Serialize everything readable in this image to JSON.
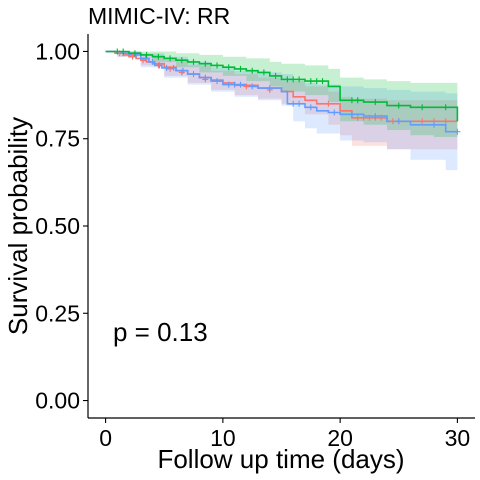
{
  "chart_data": {
    "type": "line",
    "title": "MIMIC-IV: RR",
    "xlabel": "Follow up time (days)",
    "ylabel": "Survival probability",
    "xlim": [
      -1.5,
      31.5
    ],
    "ylim": [
      -0.05,
      1.05
    ],
    "x_ticks": [
      0,
      10,
      20,
      30
    ],
    "x_tick_labels": [
      "0",
      "10",
      "20",
      "30"
    ],
    "y_ticks": [
      0,
      0.25,
      0.5,
      0.75,
      1.0
    ],
    "y_tick_labels": [
      "0.00",
      "0.25",
      "0.50",
      "0.75",
      "1.00"
    ],
    "grid": false,
    "legend": "none",
    "annotation": "p = 0.13",
    "series": [
      {
        "color": "#F8766D",
        "ci_color": "#F8766D",
        "steps": [
          [
            0,
            1.0
          ],
          [
            0.8,
            0.995
          ],
          [
            1.5,
            0.99
          ],
          [
            2,
            0.985
          ],
          [
            2.6,
            0.98
          ],
          [
            3,
            0.975
          ],
          [
            3.5,
            0.97
          ],
          [
            4,
            0.965
          ],
          [
            5,
            0.955
          ],
          [
            6,
            0.945
          ],
          [
            7,
            0.935
          ],
          [
            8,
            0.925
          ],
          [
            9,
            0.918
          ],
          [
            10,
            0.91
          ],
          [
            11,
            0.903
          ],
          [
            13,
            0.895
          ],
          [
            15,
            0.885
          ],
          [
            16,
            0.87
          ],
          [
            17,
            0.86
          ],
          [
            18,
            0.85
          ],
          [
            20,
            0.83
          ],
          [
            21,
            0.81
          ],
          [
            24,
            0.8
          ],
          [
            26,
            0.8
          ],
          [
            30,
            0.8
          ]
        ],
        "ci_lower": [
          [
            0,
            1.0
          ],
          [
            1,
            0.985
          ],
          [
            3,
            0.96
          ],
          [
            5,
            0.93
          ],
          [
            7,
            0.91
          ],
          [
            9,
            0.89
          ],
          [
            11,
            0.875
          ],
          [
            13,
            0.865
          ],
          [
            15,
            0.85
          ],
          [
            17,
            0.82
          ],
          [
            19,
            0.79
          ],
          [
            20,
            0.76
          ],
          [
            21,
            0.73
          ],
          [
            24,
            0.72
          ],
          [
            30,
            0.72
          ]
        ],
        "ci_upper": [
          [
            0,
            1.0
          ],
          [
            1,
            1.0
          ],
          [
            3,
            0.99
          ],
          [
            5,
            0.975
          ],
          [
            7,
            0.96
          ],
          [
            9,
            0.945
          ],
          [
            11,
            0.935
          ],
          [
            13,
            0.925
          ],
          [
            15,
            0.915
          ],
          [
            17,
            0.9
          ],
          [
            19,
            0.885
          ],
          [
            20,
            0.87
          ],
          [
            21,
            0.865
          ],
          [
            24,
            0.86
          ],
          [
            30,
            0.86
          ]
        ],
        "censored": [
          [
            1.2,
            0.995
          ],
          [
            2.3,
            0.985
          ],
          [
            3.2,
            0.975
          ],
          [
            4.5,
            0.96
          ],
          [
            5.5,
            0.95
          ],
          [
            6.5,
            0.94
          ],
          [
            8.5,
            0.92
          ],
          [
            12,
            0.9
          ],
          [
            14,
            0.89
          ],
          [
            19,
            0.85
          ],
          [
            21.5,
            0.81
          ],
          [
            22,
            0.81
          ],
          [
            22.5,
            0.81
          ],
          [
            23,
            0.81
          ],
          [
            23.5,
            0.81
          ],
          [
            24.5,
            0.8
          ],
          [
            25,
            0.8
          ],
          [
            27,
            0.8
          ],
          [
            28,
            0.8
          ],
          [
            29,
            0.8
          ]
        ]
      },
      {
        "color": "#619CFF",
        "ci_color": "#619CFF",
        "steps": [
          [
            0,
            1.0
          ],
          [
            1,
            0.995
          ],
          [
            2,
            0.99
          ],
          [
            3,
            0.98
          ],
          [
            3.7,
            0.97
          ],
          [
            4.2,
            0.96
          ],
          [
            4.8,
            0.953
          ],
          [
            6,
            0.945
          ],
          [
            7,
            0.935
          ],
          [
            8,
            0.925
          ],
          [
            9,
            0.915
          ],
          [
            10,
            0.905
          ],
          [
            12,
            0.9
          ],
          [
            13,
            0.895
          ],
          [
            15,
            0.885
          ],
          [
            15.5,
            0.85
          ],
          [
            17,
            0.84
          ],
          [
            18,
            0.83
          ],
          [
            19,
            0.825
          ],
          [
            20,
            0.82
          ],
          [
            22,
            0.815
          ],
          [
            24,
            0.8
          ],
          [
            26,
            0.79
          ],
          [
            29,
            0.77
          ],
          [
            30,
            0.77
          ]
        ],
        "ci_lower": [
          [
            0,
            1.0
          ],
          [
            1,
            0.985
          ],
          [
            3,
            0.955
          ],
          [
            5,
            0.925
          ],
          [
            7,
            0.905
          ],
          [
            9,
            0.885
          ],
          [
            11,
            0.87
          ],
          [
            13,
            0.86
          ],
          [
            15,
            0.845
          ],
          [
            16,
            0.8
          ],
          [
            17,
            0.78
          ],
          [
            18,
            0.765
          ],
          [
            20,
            0.745
          ],
          [
            22,
            0.74
          ],
          [
            24,
            0.72
          ],
          [
            26,
            0.69
          ],
          [
            29,
            0.66
          ],
          [
            30,
            0.66
          ]
        ],
        "ci_upper": [
          [
            0,
            1.0
          ],
          [
            1,
            1.0
          ],
          [
            3,
            0.995
          ],
          [
            5,
            0.985
          ],
          [
            7,
            0.97
          ],
          [
            9,
            0.955
          ],
          [
            11,
            0.945
          ],
          [
            13,
            0.94
          ],
          [
            15,
            0.935
          ],
          [
            16,
            0.915
          ],
          [
            17,
            0.91
          ],
          [
            18,
            0.905
          ],
          [
            20,
            0.9
          ],
          [
            22,
            0.895
          ],
          [
            24,
            0.89
          ],
          [
            26,
            0.885
          ],
          [
            29,
            0.88
          ],
          [
            30,
            0.88
          ]
        ],
        "censored": [
          [
            1.5,
            0.995
          ],
          [
            2.6,
            0.99
          ],
          [
            3.4,
            0.98
          ],
          [
            4,
            0.97
          ],
          [
            4.6,
            0.96
          ],
          [
            5.2,
            0.953
          ],
          [
            5.8,
            0.953
          ],
          [
            6.6,
            0.945
          ],
          [
            7.5,
            0.935
          ],
          [
            8.5,
            0.925
          ],
          [
            9.5,
            0.915
          ],
          [
            10.5,
            0.905
          ],
          [
            11,
            0.905
          ],
          [
            11.5,
            0.905
          ],
          [
            12.5,
            0.9
          ],
          [
            14,
            0.895
          ],
          [
            16,
            0.85
          ],
          [
            16.5,
            0.85
          ],
          [
            17.5,
            0.84
          ],
          [
            19.5,
            0.825
          ],
          [
            21,
            0.82
          ],
          [
            23,
            0.815
          ],
          [
            25,
            0.8
          ],
          [
            28,
            0.79
          ],
          [
            30,
            0.77
          ]
        ]
      },
      {
        "color": "#00BA38",
        "ci_color": "#00BA38",
        "steps": [
          [
            0,
            1.0
          ],
          [
            2,
            0.995
          ],
          [
            3,
            0.99
          ],
          [
            4,
            0.985
          ],
          [
            5,
            0.98
          ],
          [
            6,
            0.975
          ],
          [
            7,
            0.97
          ],
          [
            8,
            0.965
          ],
          [
            9,
            0.96
          ],
          [
            10,
            0.955
          ],
          [
            11,
            0.95
          ],
          [
            12,
            0.945
          ],
          [
            13,
            0.94
          ],
          [
            14,
            0.93
          ],
          [
            15,
            0.92
          ],
          [
            17,
            0.915
          ],
          [
            19,
            0.9
          ],
          [
            20,
            0.86
          ],
          [
            22,
            0.855
          ],
          [
            24,
            0.845
          ],
          [
            26,
            0.84
          ],
          [
            28,
            0.84
          ],
          [
            30,
            0.8
          ]
        ],
        "ci_lower": [
          [
            0,
            1.0
          ],
          [
            2,
            0.99
          ],
          [
            4,
            0.97
          ],
          [
            6,
            0.955
          ],
          [
            8,
            0.94
          ],
          [
            10,
            0.93
          ],
          [
            12,
            0.915
          ],
          [
            14,
            0.9
          ],
          [
            15,
            0.885
          ],
          [
            17,
            0.875
          ],
          [
            19,
            0.855
          ],
          [
            20,
            0.8
          ],
          [
            22,
            0.79
          ],
          [
            24,
            0.775
          ],
          [
            26,
            0.76
          ],
          [
            28,
            0.755
          ],
          [
            30,
            0.72
          ]
        ],
        "ci_upper": [
          [
            0,
            1.0
          ],
          [
            2,
            1.0
          ],
          [
            4,
            1.0
          ],
          [
            6,
            0.995
          ],
          [
            8,
            0.99
          ],
          [
            10,
            0.985
          ],
          [
            12,
            0.98
          ],
          [
            14,
            0.97
          ],
          [
            15,
            0.965
          ],
          [
            17,
            0.96
          ],
          [
            19,
            0.95
          ],
          [
            20,
            0.925
          ],
          [
            22,
            0.92
          ],
          [
            24,
            0.915
          ],
          [
            26,
            0.91
          ],
          [
            28,
            0.91
          ],
          [
            30,
            0.9
          ]
        ],
        "censored": [
          [
            1,
            1.0
          ],
          [
            1.5,
            1.0
          ],
          [
            2.5,
            0.995
          ],
          [
            3.5,
            0.99
          ],
          [
            4.5,
            0.985
          ],
          [
            5.5,
            0.98
          ],
          [
            6.5,
            0.975
          ],
          [
            7.5,
            0.97
          ],
          [
            8.5,
            0.965
          ],
          [
            9.5,
            0.96
          ],
          [
            10.5,
            0.955
          ],
          [
            11.5,
            0.95
          ],
          [
            12.5,
            0.945
          ],
          [
            13.5,
            0.94
          ],
          [
            14.5,
            0.93
          ],
          [
            15.5,
            0.92
          ],
          [
            16,
            0.92
          ],
          [
            16.5,
            0.92
          ],
          [
            17.5,
            0.915
          ],
          [
            18,
            0.915
          ],
          [
            18.5,
            0.915
          ],
          [
            21,
            0.86
          ],
          [
            21.5,
            0.86
          ],
          [
            23,
            0.855
          ],
          [
            25,
            0.845
          ],
          [
            27,
            0.84
          ],
          [
            29,
            0.84
          ]
        ]
      }
    ]
  }
}
